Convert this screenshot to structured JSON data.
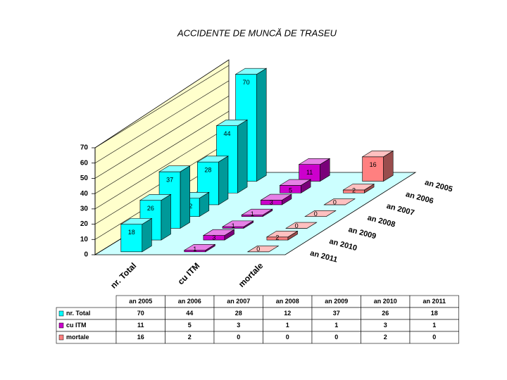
{
  "chart_data": {
    "type": "bar3d",
    "title": "ACCIDENTE DE MUNCĂ DE TRASEU",
    "categories": [
      "nr. Total",
      "cu ITM",
      "mortale"
    ],
    "category_colors": [
      "#00ffff",
      "#cc00cc",
      "#ff8080"
    ],
    "series": [
      {
        "name": "an 2005",
        "values": [
          70,
          11,
          16
        ]
      },
      {
        "name": "an 2006",
        "values": [
          44,
          5,
          2
        ]
      },
      {
        "name": "an 2007",
        "values": [
          28,
          3,
          0
        ]
      },
      {
        "name": "an 2008",
        "values": [
          12,
          1,
          0
        ]
      },
      {
        "name": "an 2009",
        "values": [
          37,
          1,
          0
        ]
      },
      {
        "name": "an 2010",
        "values": [
          26,
          3,
          2
        ]
      },
      {
        "name": "an 2011",
        "values": [
          18,
          1,
          0
        ]
      }
    ],
    "ylim": [
      0,
      70
    ],
    "yticks": [
      0,
      10,
      20,
      30,
      40,
      50,
      60,
      70
    ],
    "grid": true
  }
}
